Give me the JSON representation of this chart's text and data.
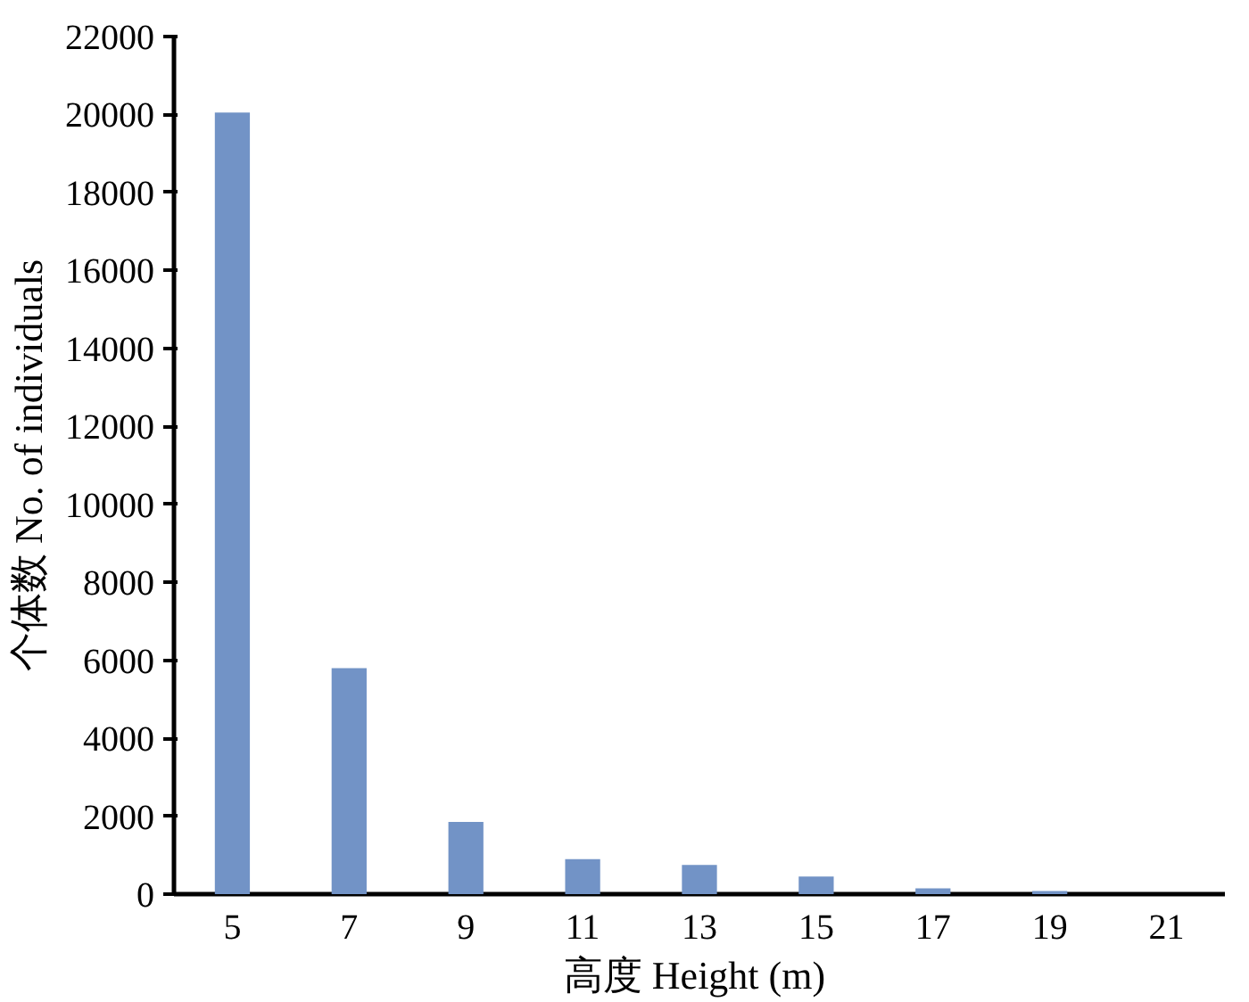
{
  "chart_data": {
    "type": "bar",
    "xlabel": "高度  Height (m)",
    "ylabel": "个体数 No. of individuals",
    "categories": [
      "5",
      "7",
      "9",
      "11",
      "13",
      "15",
      "17",
      "19",
      "21"
    ],
    "values": [
      20050,
      5800,
      1850,
      900,
      750,
      450,
      150,
      80,
      null
    ],
    "color": "#7293c6",
    "ylim": [
      0,
      22000
    ],
    "yticks": [
      0,
      2000,
      4000,
      6000,
      8000,
      10000,
      12000,
      14000,
      16000,
      18000,
      20000,
      22000
    ],
    "grid": false
  }
}
